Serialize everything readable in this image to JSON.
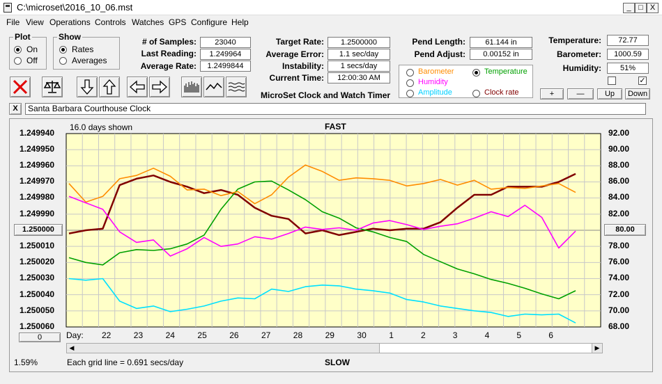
{
  "window": {
    "title": "C:\\microset\\2016_10_06.mst",
    "minimize": "_",
    "maximize": "□",
    "close": "X"
  },
  "menu": [
    "File",
    "View",
    "Operations",
    "Controls",
    "Watches",
    "GPS",
    "Configure",
    "Help"
  ],
  "plot_group": {
    "title": "Plot",
    "on": "On",
    "off": "Off",
    "selected": "On"
  },
  "show_group": {
    "title": "Show",
    "rates": "Rates",
    "averages": "Averages",
    "selected": "Rates"
  },
  "stats": {
    "samples_label": "# of Samples:",
    "samples": "23040",
    "last_label": "Last Reading:",
    "last": "1.249964",
    "avg_label": "Average Rate:",
    "avg": "1.2499844"
  },
  "rates": {
    "target_label": "Target Rate:",
    "target": "1.2500000",
    "error_label": "Average Error:",
    "error": "1.1 sec/day",
    "instab_label": "Instability:",
    "instab": "1 secs/day",
    "time_label": "Current Time:",
    "time": "12:00:30 AM"
  },
  "app_caption": "MicroSet Clock and Watch Timer",
  "pend": {
    "length_label": "Pend Length:",
    "length": "61.144 in",
    "adjust_label": "Pend Adjust:",
    "adjust": "0.00152 in"
  },
  "sensors": {
    "temp_label": "Temperature:",
    "temp": "72.77",
    "baro_label": "Barometer:",
    "baro": "1000.59",
    "hum_label": "Humidity:",
    "hum": "51%",
    "check1": "",
    "check2": "✓"
  },
  "trace_select": {
    "barometer": "Barometer",
    "temperature": "Temperature",
    "humidity": "Humidity",
    "amplitude": "Amplitude",
    "clock_rate": "Clock rate",
    "selected": "Temperature"
  },
  "adjust_buttons": {
    "plus": "+",
    "minus": "—",
    "up": "Up",
    "down": "Down"
  },
  "clock_name": {
    "close": "X",
    "name": "Santa Barbara Courthouse Clock"
  },
  "colors": {
    "plot_bg": "#ffffc8",
    "rate": "#800000",
    "barometer": "#ff8c00",
    "humidity": "#ff00ff",
    "temperature": "#00a000",
    "amplitude": "#00e0ff"
  },
  "chart_data": {
    "type": "line",
    "top_label": "FAST",
    "bottom_label": "SLOW",
    "days_shown": "16.0 days shown",
    "grid_note": "Each grid line = 0.691 secs/day",
    "left_axis": [
      "1.249940",
      "1.249950",
      "1.249960",
      "1.249970",
      "1.249980",
      "1.249990",
      "1.250000",
      "1.250010",
      "1.250020",
      "1.250030",
      "1.250040",
      "1.250050",
      "1.250060"
    ],
    "right_axis": [
      "92.00",
      "90.00",
      "88.00",
      "86.00",
      "84.00",
      "82.00",
      "80.00",
      "78.00",
      "76.00",
      "74.00",
      "72.00",
      "70.00",
      "68.00"
    ],
    "center_left": "1.250000",
    "center_right": "80.00",
    "x_label": "Day:",
    "x_ticks": [
      "22",
      "23",
      "24",
      "25",
      "26",
      "27",
      "28",
      "29",
      "30",
      "1",
      "2",
      "3",
      "4",
      "5",
      "6"
    ],
    "left_button": "0",
    "percent": "1.59%",
    "ylim_left": [
      1.24994,
      1.25006
    ],
    "ylim_right": [
      68,
      92
    ],
    "series": [
      {
        "name": "Clock rate",
        "color": "#800000",
        "values": [
          1.250002,
          1.25,
          1.249999,
          1.249972,
          1.249968,
          1.249966,
          1.24997,
          1.249973,
          1.249977,
          1.249975,
          1.249978,
          1.249986,
          1.249991,
          1.249993,
          1.250002,
          1.25,
          1.250003,
          1.250001,
          1.249999,
          1.25,
          1.249999,
          1.249999,
          1.249995,
          1.249986,
          1.249978,
          1.249978,
          1.249973,
          1.249973,
          1.249973,
          1.24997,
          1.249965
        ]
      },
      {
        "name": "Temperature",
        "values": [
          76.6,
          76.0,
          75.7,
          77.2,
          77.6,
          77.5,
          77.7,
          78.3,
          79.4,
          82.6,
          85.1,
          86.0,
          86.1,
          85.0,
          83.8,
          82.3,
          81.5,
          80.3,
          79.8,
          79.1,
          78.6,
          77.0,
          76.1,
          75.2,
          74.6,
          73.9,
          73.4,
          72.8,
          72.1,
          71.5,
          72.5
        ]
      },
      {
        "name": "Barometer",
        "values": [
          85.8,
          83.5,
          84.2,
          86.4,
          86.8,
          87.7,
          86.7,
          85.0,
          85.1,
          84.3,
          84.8,
          83.3,
          84.4,
          86.6,
          88.1,
          87.3,
          86.2,
          86.5,
          86.4,
          86.2,
          85.5,
          85.8,
          86.3,
          85.6,
          86.2,
          85.1,
          85.3,
          85.2,
          85.5,
          85.8,
          84.7
        ]
      },
      {
        "name": "Humidity",
        "values": [
          84.2,
          83.4,
          82.6,
          79.8,
          78.5,
          78.8,
          76.8,
          77.7,
          79.1,
          78.0,
          78.3,
          79.2,
          78.9,
          79.6,
          80.4,
          80.1,
          80.3,
          80.0,
          80.9,
          81.2,
          80.7,
          80.1,
          80.5,
          80.8,
          81.5,
          82.3,
          81.7,
          83.1,
          81.6,
          77.8,
          79.9
        ]
      },
      {
        "name": "Amplitude",
        "values": [
          74.0,
          73.8,
          74.0,
          71.2,
          70.3,
          70.6,
          69.9,
          70.2,
          70.6,
          71.2,
          71.6,
          71.5,
          72.7,
          72.4,
          73.0,
          73.2,
          73.1,
          72.7,
          72.5,
          72.2,
          71.4,
          71.1,
          70.6,
          70.3,
          70.0,
          69.8,
          69.3,
          69.6,
          69.5,
          69.6,
          68.5
        ]
      }
    ]
  }
}
